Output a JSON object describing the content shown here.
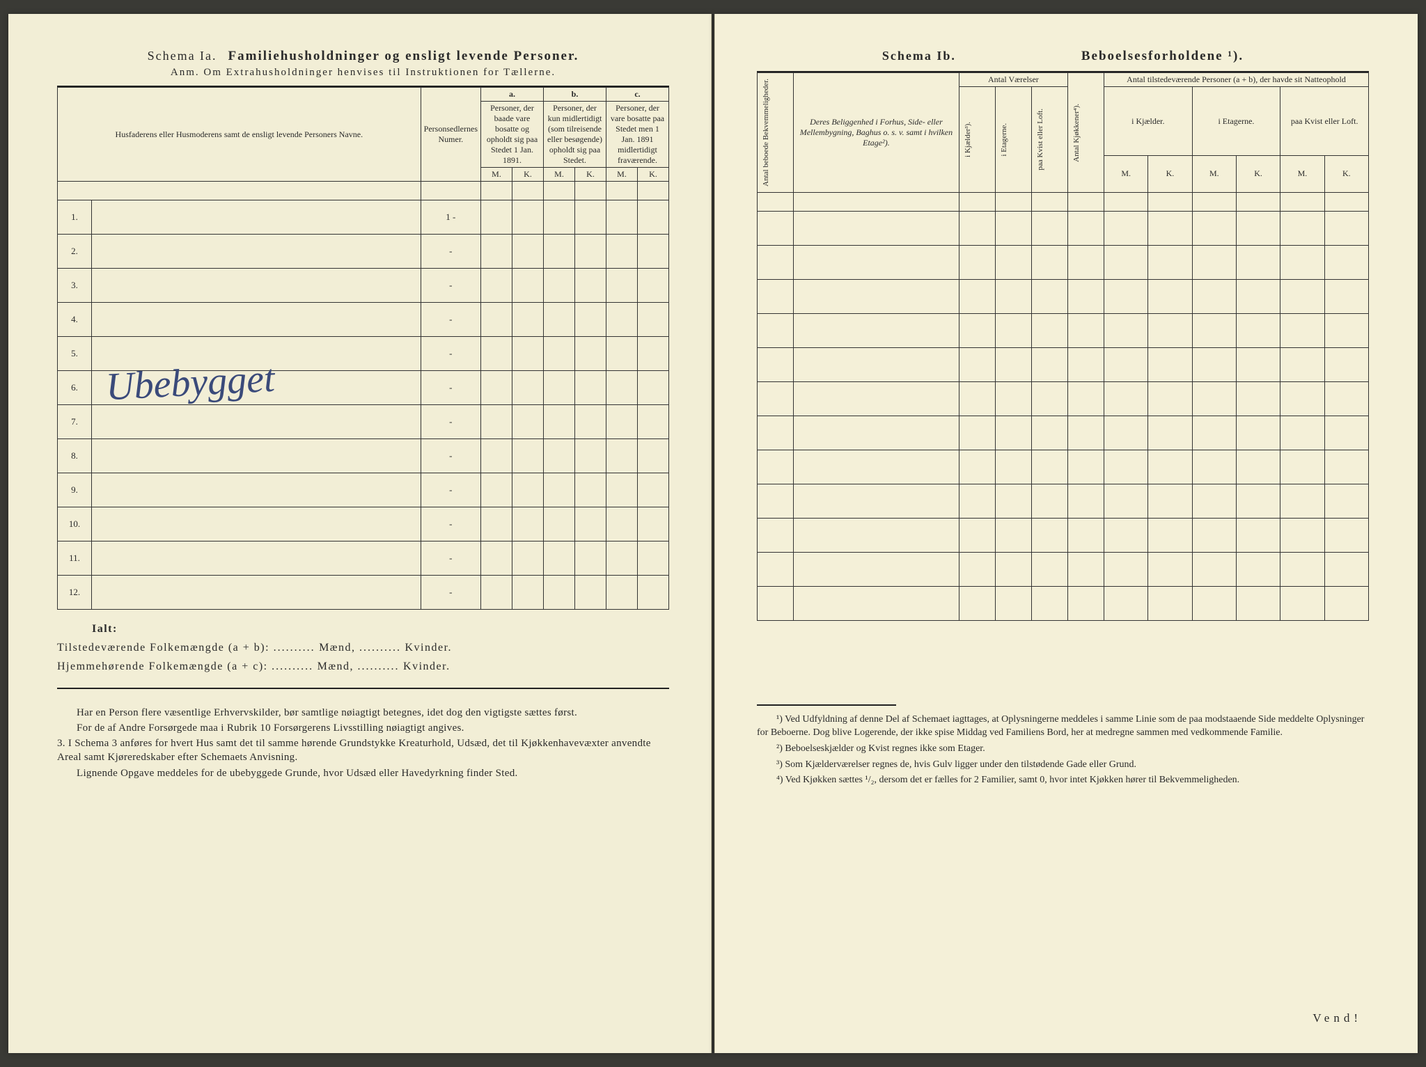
{
  "left": {
    "schema_label": "Schema Ia.",
    "schema_title": "Familiehusholdninger og ensligt levende Personer.",
    "anm": "Anm. Om Extrahusholdninger henvises til Instruktionen for Tællerne.",
    "col1_header": "Husfaderens eller Husmoderens samt de ensligt levende Personers Navne.",
    "col2_header": "Personsedlernes Numer.",
    "group_a": "a.",
    "group_a_desc": "Personer, der baade vare bosatte og opholdt sig paa Stedet 1 Jan. 1891.",
    "group_b": "b.",
    "group_b_desc": "Personer, der kun midlertidigt (som tilreisende eller besøgende) opholdt sig paa Stedet.",
    "group_c": "c.",
    "group_c_desc": "Personer, der vare bosatte paa Stedet men 1 Jan. 1891 midlertidigt fraværende.",
    "m_label": "M.",
    "k_label": "K.",
    "row_nums": [
      "1.",
      "2.",
      "3.",
      "4.",
      "5.",
      "6.",
      "7.",
      "8.",
      "9.",
      "10.",
      "11.",
      "12."
    ],
    "row_dashes": [
      "1 -",
      "-",
      "-",
      "-",
      "-",
      "-",
      "-",
      "-",
      "-",
      "-",
      "-",
      "-"
    ],
    "handwriting": "Ubebygget",
    "summary": {
      "ialt": "Ialt:",
      "line1_a": "Tilstedeværende Folkemængde (a + b):",
      "line2_a": "Hjemmehørende Folkemængde (a + c):",
      "maend": "Mænd,",
      "kvinder": "Kvinder.",
      "dots": ".........."
    },
    "body": {
      "p1": "Har en Person flere væsentlige Erhvervskilder, bør samtlige nøiagtigt betegnes, idet dog den vigtigste sættes først.",
      "p2": "For de af Andre Forsørgede maa i Rubrik 10 Forsørgerens Livsstilling nøiagtigt angives.",
      "p3_num": "3.",
      "p3": "I Schema 3 anføres for hvert Hus samt det til samme hørende Grundstykke Kreaturhold, Udsæd, det til Kjøkkenhavevæxter anvendte Areal samt Kjøreredskaber efter Schemaets Anvisning.",
      "p4": "Lignende Opgave meddeles for de ubebyggede Grunde, hvor Udsæd eller Havedyrkning finder Sted."
    }
  },
  "right": {
    "schema_label": "Schema Ib.",
    "schema_title": "Beboelsesforholdene ¹).",
    "col_v1": "Antal beboede Bekvemmeligheder.",
    "col_belig": "Deres Beliggenhed i Forhus, Side- eller Mellembygning, Baghus o. s. v. samt i hvilken Etage²).",
    "antal_vaerelser": "Antal Værelser",
    "col_v_kj": "i Kjælder³).",
    "col_v_et": "i Etagerne.",
    "col_v_kv": "paa Kvist eller Loft.",
    "col_kjok": "Antal Kjøkkener⁴).",
    "antal_personer": "Antal tilstedeværende Personer (a + b), der havde sit Natteophold",
    "sub_kj": "i Kjælder.",
    "sub_et": "i Etagerne.",
    "sub_kv": "paa Kvist eller Loft.",
    "m_label": "M.",
    "k_label": "K.",
    "footnotes": {
      "f1": "¹) Ved Udfyldning af denne Del af Schemaet iagttages, at Oplysningerne meddeles i samme Linie som de paa modstaaende Side meddelte Oplysninger for Beboerne. Dog blive Logerende, der ikke spise Middag ved Familiens Bord, her at medregne sammen med vedkommende Familie.",
      "f2": "²) Beboelseskjælder og Kvist regnes ikke som Etager.",
      "f3": "³) Som Kjælderværelser regnes de, hvis Gulv ligger under den tilstødende Gade eller Grund.",
      "f4": "⁴) Ved Kjøkken sættes ¹/₂, dersom det er fælles for 2 Familier, samt 0, hvor intet Kjøkken hører til Bekvemmeligheden."
    },
    "vend": "Vend!"
  }
}
